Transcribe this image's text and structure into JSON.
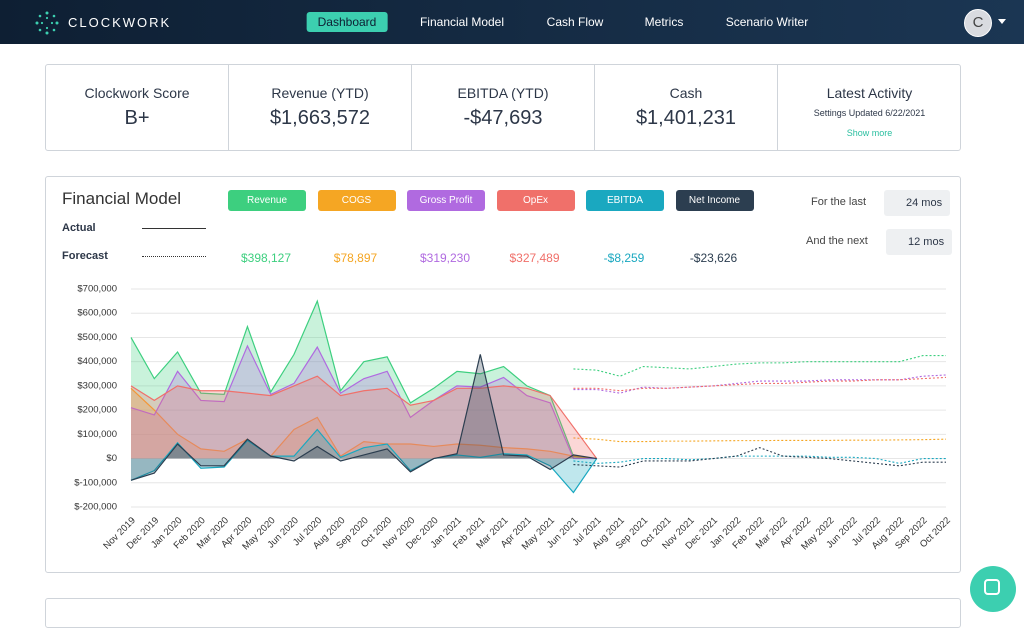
{
  "nav": {
    "brand": "CLOCKWORK",
    "items": [
      "Dashboard",
      "Financial Model",
      "Cash Flow",
      "Metrics",
      "Scenario Writer"
    ],
    "avatar": "C"
  },
  "kpis": [
    {
      "label": "Clockwork Score",
      "value": "B+"
    },
    {
      "label": "Revenue (YTD)",
      "value": "$1,663,572"
    },
    {
      "label": "EBITDA (YTD)",
      "value": "-$47,693"
    },
    {
      "label": "Cash",
      "value": "$1,401,231"
    }
  ],
  "latest_activity": {
    "title": "Latest Activity",
    "text": "Settings Updated 6/22/2021",
    "link": "Show more"
  },
  "controls": {
    "actual": "Actual",
    "forecast": "Forecast",
    "last_label": "For the last",
    "last_value": "24 mos",
    "next_label": "And the next",
    "next_value": "12 mos"
  },
  "chart_data": {
    "type": "area",
    "title": "Financial Model",
    "categories": [
      "Nov 2019",
      "Dec 2019",
      "Jan 2020",
      "Feb 2020",
      "Mar 2020",
      "Apr 2020",
      "May 2020",
      "Jun 2020",
      "Jul 2020",
      "Aug 2020",
      "Sep 2020",
      "Oct 2020",
      "Nov 2020",
      "Dec 2020",
      "Jan 2021",
      "Feb 2021",
      "Mar 2021",
      "Apr 2021",
      "May 2021",
      "Jun 2021",
      "Jul 2021",
      "Aug 2021",
      "Sep 2021",
      "Oct 2021",
      "Nov 2021",
      "Dec 2021",
      "Jan 2022",
      "Feb 2022",
      "Mar 2022",
      "Apr 2022",
      "May 2022",
      "Jun 2022",
      "Jul 2022",
      "Aug 2022",
      "Sep 2022",
      "Oct 2022"
    ],
    "ylim": [
      -200000,
      700000
    ],
    "yticks": [
      {
        "value": -200000,
        "label": "$-200,000"
      },
      {
        "value": -100000,
        "label": "$-100,000"
      },
      {
        "value": 0,
        "label": "$0"
      },
      {
        "value": 100000,
        "label": "$100,000"
      },
      {
        "value": 200000,
        "label": "$200,000"
      },
      {
        "value": 300000,
        "label": "$300,000"
      },
      {
        "value": 400000,
        "label": "$400,000"
      },
      {
        "value": 500000,
        "label": "$500,000"
      },
      {
        "value": 600000,
        "label": "$600,000"
      },
      {
        "value": 700000,
        "label": "$700,000"
      }
    ],
    "grid": true,
    "series": [
      {
        "name": "Revenue",
        "color": "#3dcf7f",
        "summary": "$398,127",
        "values": [
          500000,
          330000,
          440000,
          270000,
          265000,
          545000,
          275000,
          430000,
          650000,
          280000,
          400000,
          420000,
          230000,
          290000,
          360000,
          350000,
          380000,
          300000,
          260000,
          10000,
          0,
          null,
          null,
          null,
          null,
          null,
          null,
          null,
          null,
          null,
          null,
          null,
          null,
          null,
          null,
          null
        ],
        "forecast": [
          null,
          null,
          null,
          null,
          null,
          null,
          null,
          null,
          null,
          null,
          null,
          null,
          null,
          null,
          null,
          null,
          null,
          null,
          null,
          370000,
          365000,
          340000,
          380000,
          375000,
          370000,
          380000,
          390000,
          395000,
          395000,
          400000,
          400000,
          400000,
          400000,
          400000,
          425000,
          425000
        ]
      },
      {
        "name": "COGS",
        "color": "#f5a623",
        "summary": "$78,897",
        "values": [
          290000,
          200000,
          100000,
          40000,
          30000,
          80000,
          10000,
          120000,
          170000,
          10000,
          70000,
          60000,
          60000,
          50000,
          60000,
          55000,
          45000,
          40000,
          30000,
          10000,
          0,
          null,
          null,
          null,
          null,
          null,
          null,
          null,
          null,
          null,
          null,
          null,
          null,
          null,
          null,
          null
        ],
        "forecast": [
          null,
          null,
          null,
          null,
          null,
          null,
          null,
          null,
          null,
          null,
          null,
          null,
          null,
          null,
          null,
          null,
          null,
          null,
          null,
          85000,
          80000,
          70000,
          70000,
          72000,
          72000,
          73000,
          74000,
          74000,
          75000,
          75000,
          75000,
          76000,
          76000,
          77000,
          78000,
          80000
        ]
      },
      {
        "name": "Gross Profit",
        "color": "#b06ae0",
        "summary": "$319,230",
        "values": [
          210000,
          180000,
          360000,
          240000,
          235000,
          465000,
          265000,
          310000,
          460000,
          270000,
          330000,
          360000,
          170000,
          240000,
          300000,
          295000,
          335000,
          260000,
          230000,
          0,
          0,
          null,
          null,
          null,
          null,
          null,
          null,
          null,
          null,
          null,
          null,
          null,
          null,
          null,
          null,
          null
        ],
        "forecast": [
          null,
          null,
          null,
          null,
          null,
          null,
          null,
          null,
          null,
          null,
          null,
          null,
          null,
          null,
          null,
          null,
          null,
          null,
          null,
          285000,
          285000,
          270000,
          295000,
          290000,
          295000,
          300000,
          310000,
          320000,
          320000,
          320000,
          325000,
          325000,
          325000,
          325000,
          340000,
          345000
        ]
      },
      {
        "name": "OpEx",
        "color": "#f0706a",
        "summary": "$327,489",
        "values": [
          300000,
          240000,
          300000,
          280000,
          280000,
          270000,
          260000,
          300000,
          340000,
          260000,
          280000,
          290000,
          220000,
          240000,
          290000,
          290000,
          300000,
          290000,
          260000,
          130000,
          0,
          null,
          null,
          null,
          null,
          null,
          null,
          null,
          null,
          null,
          null,
          null,
          null,
          null,
          null,
          null
        ],
        "forecast": [
          null,
          null,
          null,
          null,
          null,
          null,
          null,
          null,
          null,
          null,
          null,
          null,
          null,
          null,
          null,
          null,
          null,
          null,
          null,
          290000,
          290000,
          280000,
          290000,
          290000,
          295000,
          300000,
          305000,
          310000,
          310000,
          315000,
          320000,
          320000,
          325000,
          325000,
          330000,
          335000
        ]
      },
      {
        "name": "EBITDA",
        "color": "#1aa8c0",
        "summary": "-$8,259",
        "values": [
          -90000,
          -50000,
          65000,
          -40000,
          -35000,
          75000,
          10000,
          10000,
          120000,
          5000,
          45000,
          60000,
          -50000,
          0,
          15000,
          5000,
          20000,
          15000,
          -30000,
          -140000,
          0,
          null,
          null,
          null,
          null,
          null,
          null,
          null,
          null,
          null,
          null,
          null,
          null,
          null,
          null,
          null
        ],
        "forecast": [
          null,
          null,
          null,
          null,
          null,
          null,
          null,
          null,
          null,
          null,
          null,
          null,
          null,
          null,
          null,
          null,
          null,
          null,
          null,
          -10000,
          -20000,
          -15000,
          0,
          0,
          -5000,
          0,
          10000,
          10000,
          10000,
          10000,
          5000,
          5000,
          0,
          -20000,
          0,
          0
        ]
      },
      {
        "name": "Net Income",
        "color": "#2c3e50",
        "summary": "-$23,626",
        "values": [
          -90000,
          -60000,
          60000,
          -30000,
          -30000,
          80000,
          10000,
          -10000,
          50000,
          -10000,
          15000,
          40000,
          -55000,
          0,
          20000,
          430000,
          15000,
          10000,
          -45000,
          15000,
          0,
          null,
          null,
          null,
          null,
          null,
          null,
          null,
          null,
          null,
          null,
          null,
          null,
          null,
          null,
          null
        ],
        "forecast": [
          null,
          null,
          null,
          null,
          null,
          null,
          null,
          null,
          null,
          null,
          null,
          null,
          null,
          null,
          null,
          null,
          null,
          null,
          null,
          -25000,
          -30000,
          -35000,
          -10000,
          -10000,
          -10000,
          0,
          10000,
          45000,
          10000,
          5000,
          0,
          -10000,
          -20000,
          -30000,
          -15000,
          -15000
        ]
      }
    ]
  }
}
